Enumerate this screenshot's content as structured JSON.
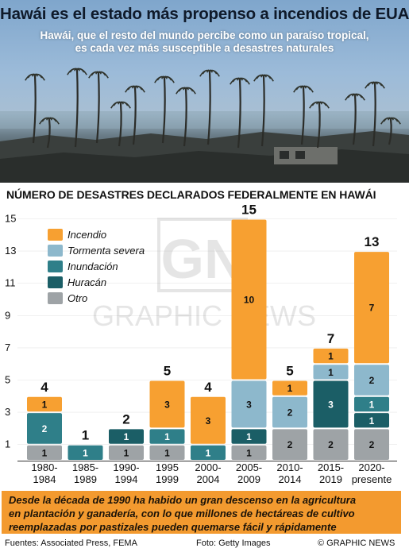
{
  "header": {
    "title": "Hawái es el estado más propenso a incendios de EUA",
    "subtitle_line1": "Hawái, que el resto del mundo percibe como un paraíso tropical,",
    "subtitle_line2": "es cada vez más susceptible a desastres naturales"
  },
  "watermark": {
    "logo": "GN",
    "text": "GRAPHIC NEWS"
  },
  "chart_data": {
    "type": "bar",
    "stacked": true,
    "title": "NÚMERO DE DESASTRES DECLARADOS FEDERALMENTE EN HAWÁI",
    "categories": [
      [
        "1980-",
        "1984"
      ],
      [
        "1985-",
        "1989"
      ],
      [
        "1990-",
        "1994"
      ],
      [
        "1995",
        "1999"
      ],
      [
        "2000-",
        "2004"
      ],
      [
        "2005-",
        "2009"
      ],
      [
        "2010-",
        "2014"
      ],
      [
        "2015-",
        "2019"
      ],
      [
        "2020-",
        "presente"
      ]
    ],
    "totals": [
      4,
      1,
      2,
      5,
      4,
      15,
      5,
      7,
      13
    ],
    "series": [
      {
        "name": "Otro",
        "color": "#9ea3a6",
        "values": [
          1,
          0,
          1,
          1,
          0,
          1,
          2,
          2,
          2
        ]
      },
      {
        "name": "Huracán",
        "color": "#1b5e66",
        "values": [
          0,
          0,
          1,
          0,
          0,
          1,
          0,
          3,
          1
        ]
      },
      {
        "name": "Inundación",
        "color": "#2f7f89",
        "values": [
          2,
          1,
          0,
          1,
          1,
          0,
          0,
          0,
          1
        ]
      },
      {
        "name": "Tormenta severa",
        "color": "#8db8cc",
        "values": [
          0,
          0,
          0,
          0,
          0,
          3,
          2,
          1,
          2
        ]
      },
      {
        "name": "Incendio",
        "color": "#f7a031",
        "values": [
          1,
          0,
          0,
          3,
          3,
          10,
          1,
          1,
          7
        ]
      }
    ],
    "legend_order": [
      "Incendio",
      "Tormenta severa",
      "Inundación",
      "Huracán",
      "Otro"
    ],
    "y_ticks": [
      1,
      3,
      5,
      7,
      9,
      11,
      13,
      15
    ],
    "ylim": [
      0,
      15.5
    ],
    "legend_position": "top-left"
  },
  "footnote": {
    "line1": "Desde la década de 1990 ha habido un gran descenso en la agricultura",
    "line2": "en plantación y ganadería, con lo que millones de hectáreas de cultivo",
    "line3": "reemplazadas por pastizales pueden quemarse fácil y rápidamente"
  },
  "footer": {
    "sources": "Fuentes: Associated Press, FEMA",
    "photo": "Foto: Getty Images",
    "brand": "© GRAPHIC NEWS"
  }
}
